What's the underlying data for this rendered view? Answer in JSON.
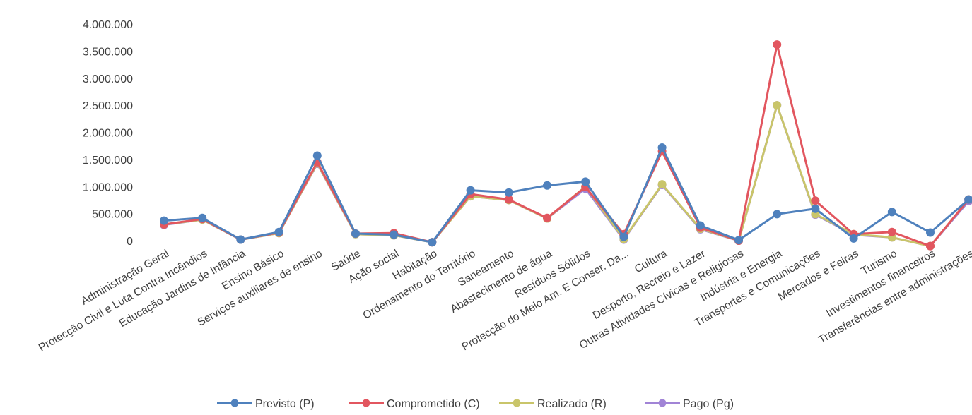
{
  "chart_data": {
    "type": "line",
    "title": "",
    "xlabel": "",
    "ylabel": "",
    "ylim": [
      0,
      4000000
    ],
    "y_ticks": [
      0,
      500000,
      1000000,
      1500000,
      2000000,
      2500000,
      3000000,
      3500000,
      4000000
    ],
    "y_tick_labels": [
      "0",
      "500.000",
      "1.000.000",
      "1.500.000",
      "2.000.000",
      "2.500.000",
      "3.000.000",
      "3.500.000",
      "4.000.000"
    ],
    "grid": false,
    "legend_position": "bottom",
    "categories": [
      "Administração Geral",
      "Protecção Civil e Luta Contra Incêndios",
      "Educação Jardins de Infância",
      "Ensino Básico",
      "Serviços auxiliares de ensino",
      "Saúde",
      "Ação social",
      "Habitação",
      "Ordenamento do Território",
      "Saneamento",
      "Abastecimento de água",
      "Resíduos Sólidos",
      "Protecção do Meio Am. E Conser. Da...",
      "Cultura",
      "Desporto, Recreio e Lazer",
      "Outras Atividades Cívicas e Religiosas",
      "Indústria e Energia",
      "Transportes e Comunicações",
      "Mercados e Feiras",
      "Turismo",
      "Investimentos financeiros",
      "Transferências entre administrações"
    ],
    "series": [
      {
        "name": "Previsto (P)",
        "color": "#4f81bd",
        "values": [
          370000,
          420000,
          20000,
          160000,
          1570000,
          130000,
          110000,
          -30000,
          930000,
          890000,
          1020000,
          1090000,
          70000,
          1720000,
          280000,
          10000,
          490000,
          590000,
          40000,
          530000,
          150000,
          760000
        ]
      },
      {
        "name": "Comprometido (C)",
        "color": "#e2565f",
        "values": [
          300000,
          400000,
          20000,
          150000,
          1450000,
          130000,
          140000,
          -30000,
          860000,
          760000,
          420000,
          990000,
          120000,
          1650000,
          240000,
          0,
          3620000,
          740000,
          120000,
          160000,
          -100000,
          760000
        ]
      },
      {
        "name": "Realizado (R)",
        "color": "#c9c56a",
        "values": [
          300000,
          390000,
          20000,
          140000,
          1430000,
          120000,
          100000,
          -30000,
          820000,
          750000,
          410000,
          1000000,
          30000,
          1040000,
          220000,
          0,
          2500000,
          490000,
          120000,
          60000,
          -100000,
          760000
        ]
      },
      {
        "name": "Pago (Pg)",
        "color": "#a184d6",
        "values": [
          290000,
          390000,
          20000,
          140000,
          1420000,
          120000,
          100000,
          -30000,
          820000,
          750000,
          410000,
          960000,
          20000,
          1030000,
          210000,
          0,
          2500000,
          480000,
          110000,
          60000,
          -100000,
          730000
        ]
      }
    ]
  }
}
